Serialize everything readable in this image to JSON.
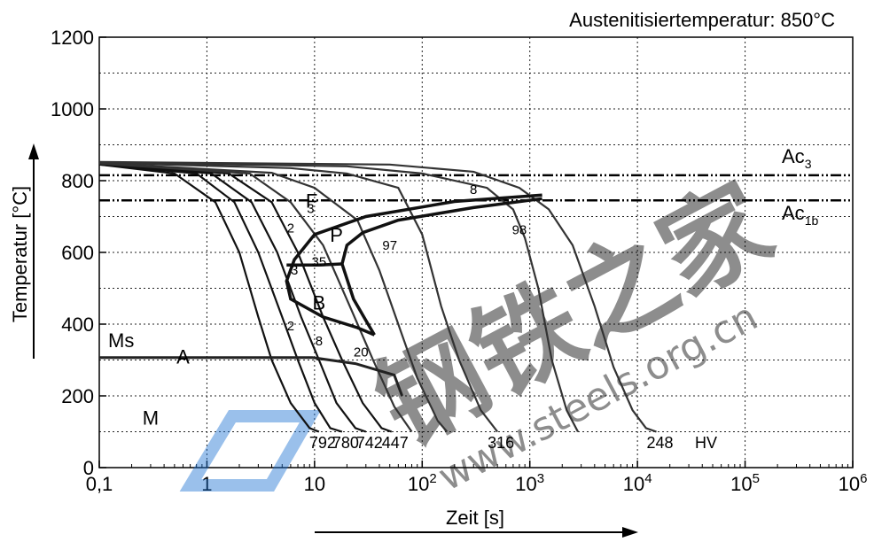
{
  "chart_data": {
    "type": "line",
    "title": "Austenitisiertemperatur: 850°C",
    "xlabel": "Zeit [s]",
    "ylabel": "Temperatur [°C]",
    "x_scale": "log",
    "xlim": [
      0.1,
      1000000
    ],
    "ylim": [
      0,
      1200
    ],
    "x_ticks": [
      "0,1",
      "1",
      "10",
      "10^2",
      "10^3",
      "10^4",
      "10^5",
      "10^6"
    ],
    "y_ticks": [
      "0",
      "200",
      "400",
      "600",
      "800",
      "1000",
      "1200"
    ],
    "grid": true,
    "reference_lines": [
      {
        "label_main": "Ac",
        "label_sub": "3",
        "y": 815
      },
      {
        "label_main": "Ac",
        "label_sub": "1b",
        "y": 745
      }
    ],
    "ms": {
      "label": "Ms",
      "points": [
        [
          0.1,
          307
        ],
        [
          9.5,
          307
        ],
        [
          24,
          290
        ],
        [
          55,
          258
        ],
        [
          65,
          200
        ]
      ]
    },
    "transformation_curves": [
      {
        "name": "F",
        "points": [
          [
            1300,
            760
          ],
          [
            200,
            742
          ],
          [
            30,
            700
          ],
          [
            10,
            650
          ],
          [
            6.5,
            580
          ],
          [
            5.5,
            520
          ],
          [
            6,
            470
          ],
          [
            12,
            420
          ],
          [
            25,
            390
          ],
          [
            36,
            370
          ]
        ]
      },
      {
        "name": "P",
        "points": [
          [
            1300,
            750
          ],
          [
            300,
            725
          ],
          [
            60,
            690
          ],
          [
            28,
            655
          ],
          [
            20,
            620
          ],
          [
            18,
            568
          ],
          [
            23,
            470
          ],
          [
            30,
            410
          ],
          [
            36,
            370
          ]
        ]
      },
      {
        "name": "B",
        "points": [
          [
            5.5,
            565
          ],
          [
            11,
            565
          ],
          [
            18,
            568
          ]
        ]
      }
    ],
    "cooling_curves": [
      {
        "hv": "792",
        "points": [
          [
            0.1,
            845
          ],
          [
            0.5,
            820
          ],
          [
            1.2,
            740
          ],
          [
            2,
            600
          ],
          [
            3,
            420
          ],
          [
            4,
            300
          ],
          [
            6,
            180
          ],
          [
            9,
            110
          ],
          [
            11,
            100
          ]
        ]
      },
      {
        "hv": "780",
        "points": [
          [
            0.1,
            845
          ],
          [
            0.8,
            820
          ],
          [
            1.8,
            740
          ],
          [
            3,
            600
          ],
          [
            5,
            420
          ],
          [
            7,
            300
          ],
          [
            10,
            180
          ],
          [
            14,
            110
          ],
          [
            18,
            100
          ]
        ]
      },
      {
        "hv": "742",
        "points": [
          [
            0.1,
            846
          ],
          [
            1.1,
            820
          ],
          [
            2.6,
            740
          ],
          [
            4.5,
            600
          ],
          [
            7.5,
            420
          ],
          [
            11,
            300
          ],
          [
            16,
            180
          ],
          [
            24,
            110
          ],
          [
            30,
            100
          ]
        ]
      },
      {
        "hv": "447",
        "points": [
          [
            0.1,
            847
          ],
          [
            1.6,
            820
          ],
          [
            4,
            740
          ],
          [
            7,
            600
          ],
          [
            12,
            420
          ],
          [
            18,
            300
          ],
          [
            28,
            180
          ],
          [
            42,
            110
          ],
          [
            52,
            100
          ]
        ]
      },
      {
        "hv": "",
        "points": [
          [
            0.1,
            848
          ],
          [
            2.5,
            820
          ],
          [
            6,
            740
          ],
          [
            12,
            620
          ],
          [
            22,
            440
          ],
          [
            35,
            300
          ],
          [
            55,
            170
          ],
          [
            80,
            100
          ]
        ]
      },
      {
        "hv": "",
        "points": [
          [
            0.1,
            849
          ],
          [
            4,
            822
          ],
          [
            10,
            780
          ],
          [
            25,
            690
          ],
          [
            40,
            550
          ],
          [
            60,
            400
          ],
          [
            90,
            250
          ],
          [
            140,
            130
          ],
          [
            170,
            100
          ]
        ]
      },
      {
        "hv": "316",
        "points": [
          [
            0.1,
            850
          ],
          [
            6,
            835
          ],
          [
            20,
            820
          ],
          [
            60,
            780
          ],
          [
            100,
            650
          ],
          [
            150,
            450
          ],
          [
            220,
            300
          ],
          [
            350,
            160
          ],
          [
            500,
            100
          ]
        ]
      },
      {
        "hv": "",
        "points": [
          [
            0.1,
            851
          ],
          [
            20,
            840
          ],
          [
            100,
            820
          ],
          [
            400,
            780
          ],
          [
            700,
            720
          ],
          [
            900,
            640
          ],
          [
            1200,
            500
          ],
          [
            1600,
            300
          ],
          [
            2200,
            160
          ],
          [
            2800,
            100
          ]
        ]
      },
      {
        "hv": "248",
        "points": [
          [
            0.1,
            852
          ],
          [
            50,
            845
          ],
          [
            300,
            825
          ],
          [
            800,
            780
          ],
          [
            1500,
            720
          ],
          [
            2500,
            620
          ],
          [
            4000,
            450
          ],
          [
            6000,
            280
          ],
          [
            9000,
            160
          ],
          [
            12000,
            110
          ],
          [
            15000,
            100
          ]
        ]
      }
    ],
    "region_labels": [
      "A",
      "M",
      "F",
      "P",
      "B"
    ],
    "annotations": [
      {
        "text": "8",
        "x": 300,
        "y": 778
      },
      {
        "text": "3",
        "x": 9.2,
        "y": 725
      },
      {
        "text": "2",
        "x": 6,
        "y": 670
      },
      {
        "text": "97",
        "x": 50,
        "y": 622
      },
      {
        "text": "98",
        "x": 800,
        "y": 665
      },
      {
        "text": "3",
        "x": 6.5,
        "y": 553
      },
      {
        "text": "35",
        "x": 11,
        "y": 577
      },
      {
        "text": "2",
        "x": 6,
        "y": 398
      },
      {
        "text": "8",
        "x": 11,
        "y": 355
      },
      {
        "text": "20",
        "x": 27,
        "y": 325
      }
    ],
    "hv_unit": "HV"
  },
  "watermark": {
    "text_cn": "钢铁之家",
    "text_url": "www.steels.org.cn",
    "color": "#1e73d2"
  }
}
